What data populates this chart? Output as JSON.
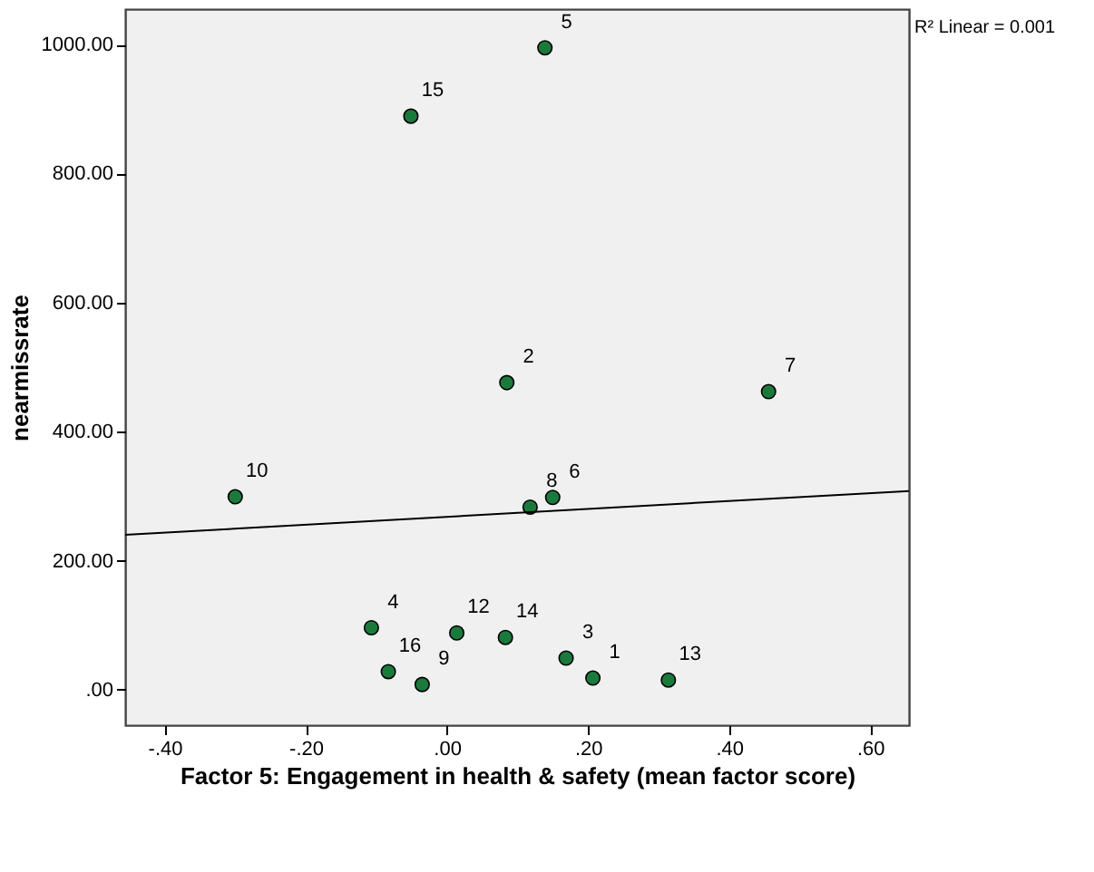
{
  "chart_data": {
    "type": "scatter",
    "xlabel": "Factor 5: Engagement in health & safety (mean factor score)",
    "ylabel": "nearmissrate",
    "x": [
      0.207,
      0.085,
      0.169,
      -0.107,
      0.139,
      0.15,
      0.456,
      0.118,
      -0.035,
      -0.3,
      0.014,
      0.314,
      0.083,
      -0.051,
      -0.083
    ],
    "series": [
      {
        "color": "#1a7a3c",
        "marker": "circle",
        "values": [
          18,
          476,
          49,
          96,
          995,
          298,
          462,
          283,
          8,
          299,
          88,
          15,
          81,
          889,
          28
        ]
      },
      {
        "type": "line",
        "color": "#000000",
        "marker": "none",
        "x": [
          -0.456,
          0.655
        ],
        "values": [
          240,
          308
        ]
      }
    ],
    "xlim": [
      -0.456,
      0.655
    ],
    "ylim": [
      -55,
      1055
    ],
    "xticks": [
      {
        "value": -0.4,
        "label": "-.40"
      },
      {
        "value": -0.2,
        "label": "-.20"
      },
      {
        "value": 0,
        "label": ".00"
      },
      {
        "value": 0.2,
        "label": ".20"
      },
      {
        "value": 0.4,
        "label": ".40"
      },
      {
        "value": 0.6,
        "label": ".60"
      }
    ],
    "yticks": [
      {
        "value": 0,
        "label": ".00"
      },
      {
        "value": 200,
        "label": "200.00"
      },
      {
        "value": 400,
        "label": "400.00"
      },
      {
        "value": 600,
        "label": "600.00"
      },
      {
        "value": 800,
        "label": "800.00"
      },
      {
        "value": 1000,
        "label": "1000.00"
      }
    ],
    "grid": false,
    "annotations": [
      "R² Linear = 0.001",
      {
        "text": "1",
        "x": 0.207,
        "y": 18
      },
      {
        "text": "2",
        "x": 0.085,
        "y": 476
      },
      {
        "text": "3",
        "x": 0.169,
        "y": 49
      },
      {
        "text": "4",
        "x": -0.107,
        "y": 96
      },
      {
        "text": "5",
        "x": 0.139,
        "y": 995
      },
      {
        "text": "6",
        "x": 0.15,
        "y": 298
      },
      {
        "text": "7",
        "x": 0.456,
        "y": 462
      },
      {
        "text": "8",
        "x": 0.118,
        "y": 283
      },
      {
        "text": "9",
        "x": -0.035,
        "y": 8
      },
      {
        "text": "10",
        "x": -0.3,
        "y": 299
      },
      {
        "text": "12",
        "x": 0.014,
        "y": 88
      },
      {
        "text": "13",
        "x": 0.314,
        "y": 15
      },
      {
        "text": "14",
        "x": 0.083,
        "y": 81
      },
      {
        "text": "15",
        "x": -0.051,
        "y": 889
      },
      {
        "text": "16",
        "x": -0.083,
        "y": 28
      }
    ]
  }
}
